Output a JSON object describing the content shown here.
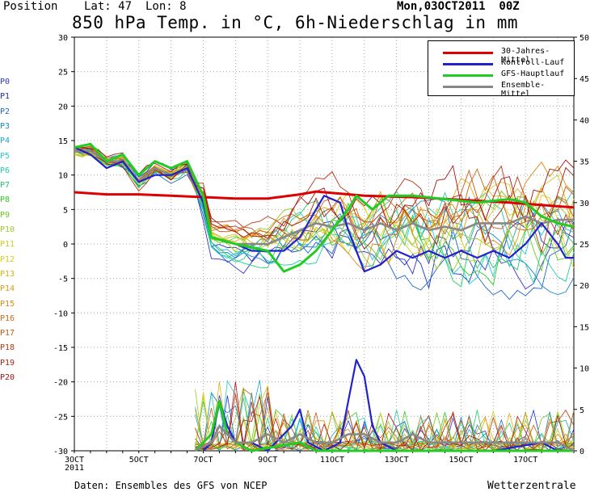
{
  "header": {
    "position_label": "Position",
    "lat_label": "Lat: 47",
    "lon_label": "Lon: 8",
    "date_label": "Mon,03OCT2011  00Z",
    "title": "850 hPa Temp. in °C, 6h-Niederschlag in mm"
  },
  "footer": {
    "source": "Daten: Ensembles des GFS von NCEP",
    "brand": "Wetterzentrale"
  },
  "member_labels": [
    "P0",
    "P1",
    "P2",
    "P3",
    "P4",
    "P5",
    "P6",
    "P7",
    "P8",
    "P9",
    "P10",
    "P11",
    "P12",
    "P13",
    "P14",
    "P15",
    "P16",
    "P17",
    "P18",
    "P19",
    "P20"
  ],
  "member_colors": [
    "#3333cc",
    "#1a33cc",
    "#1a66cc",
    "#1a88cc",
    "#1aaacc",
    "#22cccc",
    "#22ccaa",
    "#22cc66",
    "#33cc22",
    "#66cc22",
    "#99cc22",
    "#cccc22",
    "#ddcc11",
    "#ddb011",
    "#dd9911",
    "#dd8811",
    "#cc6611",
    "#cc5511",
    "#bb3311",
    "#aa2211",
    "#aa1111"
  ],
  "legend": {
    "items": [
      {
        "label": "30-Jahres-Mittel",
        "color": "#dd0000"
      },
      {
        "label": "Kontroll-Lauf",
        "color": "#2222cc"
      },
      {
        "label": "GFS-Hauptlauf",
        "color": "#22cc22"
      },
      {
        "label": "Ensemble-Mittel",
        "color": "#888888"
      }
    ]
  },
  "chart_data": {
    "type": "line",
    "title": "850 hPa Temp. in °C, 6h-Niederschlag in mm",
    "x_ticks": [
      "3OCT\n2011",
      "5OCT",
      "7OCT",
      "9OCT",
      "11OCT",
      "13OCT",
      "15OCT",
      "17OCT"
    ],
    "x_range_hours": [
      0,
      372
    ],
    "y_left_range": [
      -30,
      30
    ],
    "y_left_ticks": [
      -30,
      -25,
      -20,
      -15,
      -10,
      -5,
      0,
      5,
      10,
      15,
      20,
      25,
      30
    ],
    "y_right_range": [
      0,
      50
    ],
    "y_right_ticks": [
      0,
      5,
      10,
      15,
      20,
      25,
      30,
      35,
      40,
      45,
      50
    ],
    "grid": true,
    "legend_position": "top-right",
    "temperature_series": [
      {
        "name": "30-Jahres-Mittel",
        "values": [
          [
            0,
            7.5
          ],
          [
            24,
            7.2
          ],
          [
            48,
            7.2
          ],
          [
            72,
            7.0
          ],
          [
            96,
            6.8
          ],
          [
            120,
            6.6
          ],
          [
            144,
            6.6
          ],
          [
            168,
            7.2
          ],
          [
            180,
            7.6
          ],
          [
            216,
            7.0
          ],
          [
            252,
            6.8
          ],
          [
            288,
            6.4
          ],
          [
            324,
            6.0
          ],
          [
            372,
            5.3
          ]
        ]
      },
      {
        "name": "Kontroll-Lauf",
        "values": [
          [
            0,
            14
          ],
          [
            12,
            13
          ],
          [
            24,
            11
          ],
          [
            36,
            12
          ],
          [
            48,
            9
          ],
          [
            60,
            10
          ],
          [
            72,
            10
          ],
          [
            84,
            11
          ],
          [
            96,
            6
          ],
          [
            102,
            1
          ],
          [
            120,
            0
          ],
          [
            132,
            -1
          ],
          [
            156,
            -1
          ],
          [
            168,
            1
          ],
          [
            180,
            5
          ],
          [
            186,
            7
          ],
          [
            198,
            6
          ],
          [
            204,
            2
          ],
          [
            210,
            -1
          ],
          [
            216,
            -4
          ],
          [
            228,
            -3
          ],
          [
            240,
            -1
          ],
          [
            252,
            -2
          ],
          [
            264,
            -1
          ],
          [
            276,
            -2
          ],
          [
            288,
            -1
          ],
          [
            300,
            -2
          ],
          [
            312,
            -1
          ],
          [
            324,
            -2
          ],
          [
            336,
            0
          ],
          [
            348,
            3
          ],
          [
            360,
            0
          ],
          [
            366,
            -2
          ],
          [
            372,
            -2
          ]
        ]
      },
      {
        "name": "GFS-Hauptlauf",
        "values": [
          [
            0,
            14
          ],
          [
            12,
            14.5
          ],
          [
            24,
            12
          ],
          [
            36,
            13
          ],
          [
            48,
            10
          ],
          [
            60,
            12
          ],
          [
            72,
            11
          ],
          [
            84,
            12
          ],
          [
            96,
            7
          ],
          [
            102,
            1
          ],
          [
            120,
            0
          ],
          [
            144,
            -1
          ],
          [
            156,
            -4
          ],
          [
            168,
            -3
          ],
          [
            180,
            -1
          ],
          [
            192,
            2
          ],
          [
            204,
            5
          ],
          [
            210,
            7
          ],
          [
            222,
            5
          ],
          [
            234,
            7
          ],
          [
            252,
            7
          ],
          [
            276,
            6.5
          ],
          [
            300,
            6
          ],
          [
            324,
            6.5
          ],
          [
            336,
            6
          ],
          [
            348,
            4
          ],
          [
            360,
            3
          ],
          [
            372,
            2.5
          ]
        ]
      },
      {
        "name": "Ensemble-Mittel",
        "values": [
          [
            0,
            13.5
          ],
          [
            12,
            13.5
          ],
          [
            24,
            12
          ],
          [
            36,
            12
          ],
          [
            48,
            9
          ],
          [
            60,
            11
          ],
          [
            72,
            10
          ],
          [
            84,
            11
          ],
          [
            96,
            6
          ],
          [
            102,
            1
          ],
          [
            120,
            0
          ],
          [
            144,
            0
          ],
          [
            156,
            1
          ],
          [
            168,
            2
          ],
          [
            180,
            3
          ],
          [
            192,
            2.5
          ],
          [
            204,
            3
          ],
          [
            216,
            2
          ],
          [
            228,
            3
          ],
          [
            240,
            2
          ],
          [
            252,
            3
          ],
          [
            264,
            2
          ],
          [
            276,
            2.5
          ],
          [
            288,
            2
          ],
          [
            300,
            3
          ],
          [
            312,
            3
          ],
          [
            324,
            3
          ],
          [
            336,
            4
          ],
          [
            348,
            3
          ],
          [
            360,
            3.5
          ],
          [
            372,
            3.5
          ]
        ]
      }
    ],
    "precip_series": [
      {
        "name": "Kontroll-Lauf",
        "values": [
          [
            96,
            0
          ],
          [
            102,
            1
          ],
          [
            108,
            6
          ],
          [
            114,
            3
          ],
          [
            120,
            1
          ],
          [
            132,
            1
          ],
          [
            144,
            0
          ],
          [
            162,
            3
          ],
          [
            168,
            5
          ],
          [
            174,
            1
          ],
          [
            186,
            0
          ],
          [
            198,
            1
          ],
          [
            204,
            6
          ],
          [
            210,
            11
          ],
          [
            216,
            9
          ],
          [
            222,
            3
          ],
          [
            228,
            1
          ],
          [
            240,
            0
          ],
          [
            276,
            0
          ],
          [
            312,
            0
          ],
          [
            348,
            1
          ],
          [
            360,
            0
          ],
          [
            372,
            0
          ]
        ]
      },
      {
        "name": "GFS-Hauptlauf",
        "values": [
          [
            90,
            0
          ],
          [
            102,
            2
          ],
          [
            108,
            6
          ],
          [
            114,
            2
          ],
          [
            120,
            1
          ],
          [
            132,
            0
          ],
          [
            168,
            1
          ],
          [
            180,
            0
          ],
          [
            228,
            0
          ],
          [
            312,
            0
          ],
          [
            372,
            0
          ]
        ]
      },
      {
        "name": "Ensemble-Mittel",
        "values": [
          [
            90,
            0
          ],
          [
            102,
            1
          ],
          [
            108,
            3
          ],
          [
            114,
            2
          ],
          [
            120,
            1
          ],
          [
            132,
            1
          ],
          [
            144,
            2
          ],
          [
            156,
            1
          ],
          [
            168,
            2
          ],
          [
            180,
            1
          ],
          [
            192,
            1
          ],
          [
            204,
            2
          ],
          [
            216,
            2
          ],
          [
            228,
            1
          ],
          [
            240,
            1
          ],
          [
            252,
            2
          ],
          [
            264,
            1
          ],
          [
            276,
            1
          ],
          [
            288,
            1
          ],
          [
            300,
            1
          ],
          [
            312,
            1
          ],
          [
            324,
            1
          ],
          [
            336,
            1
          ],
          [
            348,
            1
          ],
          [
            360,
            1
          ],
          [
            372,
            0
          ]
        ]
      }
    ]
  }
}
